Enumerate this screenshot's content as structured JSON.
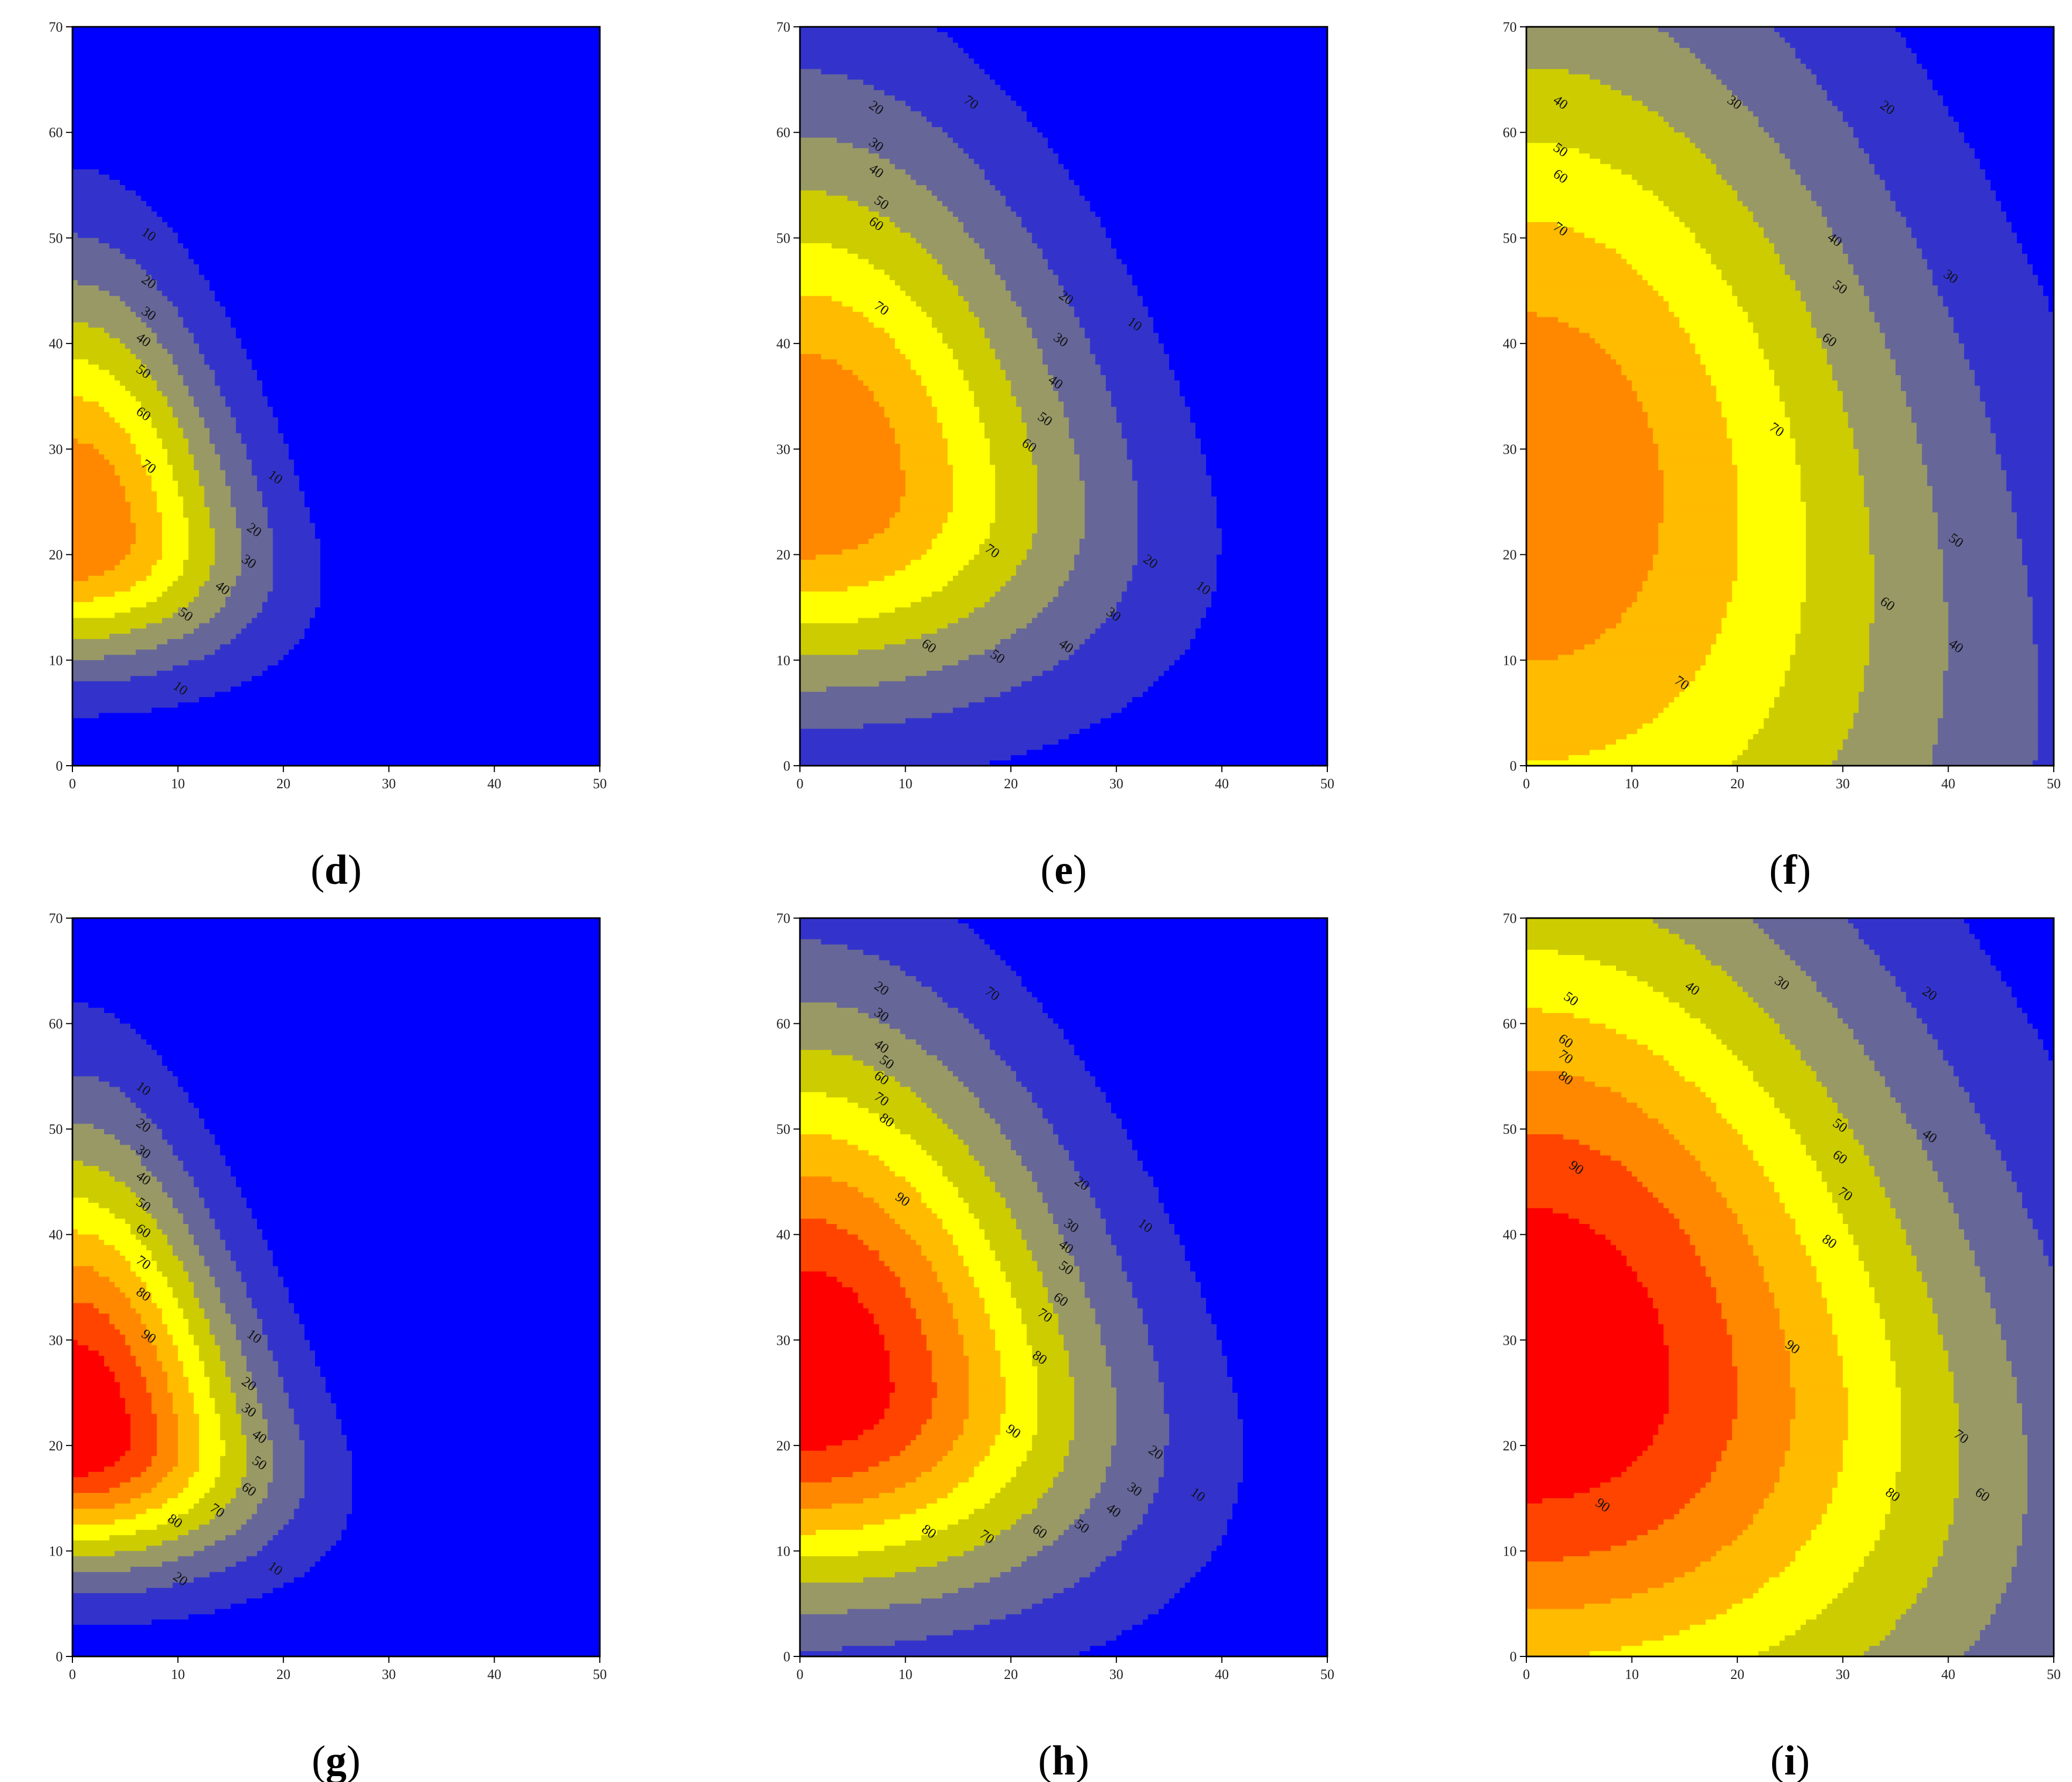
{
  "colors": {
    "level_0": "#0000ff",
    "level_10": "#3333cc",
    "level_20": "#666699",
    "level_30": "#999966",
    "level_40": "#cccc00",
    "level_50": "#ffff00",
    "level_60": "#ffbb00",
    "level_70": "#ff8800",
    "level_80": "#ff4400",
    "level_90": "#ff0000",
    "contour_line": "#000000"
  },
  "chart_data": [
    {
      "panel": "d",
      "caption": "d",
      "type": "heatmap",
      "xlim": [
        0,
        50
      ],
      "ylim": [
        0,
        70
      ],
      "xticks": [
        0,
        10,
        20,
        30,
        40,
        50
      ],
      "yticks": [
        0,
        10,
        20,
        30,
        40,
        50,
        60,
        70
      ],
      "levels": [
        10,
        20,
        30,
        40,
        50,
        60,
        70
      ],
      "contour_labels": [
        {
          "text": "10",
          "x": 7,
          "y": 50
        },
        {
          "text": "20",
          "x": 7,
          "y": 45.5
        },
        {
          "text": "30",
          "x": 7,
          "y": 42.5
        },
        {
          "text": "40",
          "x": 6.5,
          "y": 40
        },
        {
          "text": "50",
          "x": 6.5,
          "y": 37
        },
        {
          "text": "60",
          "x": 6.5,
          "y": 33
        },
        {
          "text": "70",
          "x": 7,
          "y": 28
        },
        {
          "text": "10",
          "x": 19,
          "y": 27
        },
        {
          "text": "20",
          "x": 17,
          "y": 22
        },
        {
          "text": "30",
          "x": 16.5,
          "y": 19
        },
        {
          "text": "40",
          "x": 14,
          "y": 16.5
        },
        {
          "text": "50",
          "x": 10.5,
          "y": 14
        },
        {
          "text": "10",
          "x": 10,
          "y": 7
        }
      ]
    },
    {
      "panel": "e",
      "caption": "e",
      "type": "heatmap",
      "xlim": [
        0,
        50
      ],
      "ylim": [
        0,
        70
      ],
      "xticks": [
        0,
        10,
        20,
        30,
        40,
        50
      ],
      "yticks": [
        0,
        10,
        20,
        30,
        40,
        50,
        60,
        70
      ],
      "levels": [
        10,
        20,
        30,
        40,
        50,
        60,
        70
      ],
      "contour_labels": [
        {
          "text": "20",
          "x": 7,
          "y": 62
        },
        {
          "text": "30",
          "x": 7,
          "y": 58.5
        },
        {
          "text": "40",
          "x": 7,
          "y": 56
        },
        {
          "text": "50",
          "x": 7.5,
          "y": 53
        },
        {
          "text": "60",
          "x": 7,
          "y": 51
        },
        {
          "text": "70",
          "x": 16,
          "y": 62.5
        },
        {
          "text": "70",
          "x": 7.5,
          "y": 43
        },
        {
          "text": "20",
          "x": 25,
          "y": 44
        },
        {
          "text": "10",
          "x": 31.5,
          "y": 41.5
        },
        {
          "text": "30",
          "x": 24.5,
          "y": 40
        },
        {
          "text": "40",
          "x": 24,
          "y": 36
        },
        {
          "text": "50",
          "x": 23,
          "y": 32.5
        },
        {
          "text": "60",
          "x": 21.5,
          "y": 30
        },
        {
          "text": "70",
          "x": 18,
          "y": 20
        },
        {
          "text": "20",
          "x": 33,
          "y": 19
        },
        {
          "text": "10",
          "x": 38,
          "y": 16.5
        },
        {
          "text": "30",
          "x": 29.5,
          "y": 14
        },
        {
          "text": "60",
          "x": 12,
          "y": 11
        },
        {
          "text": "50",
          "x": 18.5,
          "y": 10
        },
        {
          "text": "40",
          "x": 25,
          "y": 11
        }
      ]
    },
    {
      "panel": "f",
      "caption": "f",
      "type": "heatmap",
      "xlim": [
        0,
        50
      ],
      "ylim": [
        0,
        70
      ],
      "xticks": [
        0,
        10,
        20,
        30,
        40,
        50
      ],
      "yticks": [
        0,
        10,
        20,
        30,
        40,
        50,
        60,
        70
      ],
      "levels": [
        20,
        30,
        40,
        50,
        60,
        70
      ],
      "contour_labels": [
        {
          "text": "40",
          "x": 3,
          "y": 62.5
        },
        {
          "text": "30",
          "x": 19.5,
          "y": 62.5
        },
        {
          "text": "20",
          "x": 34,
          "y": 62
        },
        {
          "text": "50",
          "x": 3,
          "y": 58
        },
        {
          "text": "60",
          "x": 3,
          "y": 55.5
        },
        {
          "text": "70",
          "x": 3,
          "y": 50.5
        },
        {
          "text": "40",
          "x": 29,
          "y": 49.5
        },
        {
          "text": "30",
          "x": 40,
          "y": 46
        },
        {
          "text": "50",
          "x": 29.5,
          "y": 45
        },
        {
          "text": "60",
          "x": 28.5,
          "y": 40
        },
        {
          "text": "70",
          "x": 23.5,
          "y": 31.5
        },
        {
          "text": "50",
          "x": 40.5,
          "y": 21
        },
        {
          "text": "60",
          "x": 34,
          "y": 15
        },
        {
          "text": "40",
          "x": 40.5,
          "y": 11
        },
        {
          "text": "70",
          "x": 14.5,
          "y": 7.5
        }
      ]
    },
    {
      "panel": "g",
      "caption": "g",
      "type": "heatmap",
      "xlim": [
        0,
        50
      ],
      "ylim": [
        0,
        70
      ],
      "xticks": [
        0,
        10,
        20,
        30,
        40,
        50
      ],
      "yticks": [
        0,
        10,
        20,
        30,
        40,
        50,
        60,
        70
      ],
      "levels": [
        10,
        20,
        30,
        40,
        50,
        60,
        70,
        80,
        90
      ],
      "contour_labels": [
        {
          "text": "10",
          "x": 6.5,
          "y": 53.5
        },
        {
          "text": "20",
          "x": 6.5,
          "y": 50
        },
        {
          "text": "30",
          "x": 6.5,
          "y": 47.5
        },
        {
          "text": "40",
          "x": 6.5,
          "y": 45
        },
        {
          "text": "50",
          "x": 6.5,
          "y": 42.5
        },
        {
          "text": "60",
          "x": 6.5,
          "y": 40
        },
        {
          "text": "70",
          "x": 6.5,
          "y": 37
        },
        {
          "text": "80",
          "x": 6.5,
          "y": 34
        },
        {
          "text": "90",
          "x": 7,
          "y": 30
        },
        {
          "text": "10",
          "x": 17,
          "y": 30
        },
        {
          "text": "20",
          "x": 16.5,
          "y": 25.5
        },
        {
          "text": "30",
          "x": 16.5,
          "y": 23
        },
        {
          "text": "40",
          "x": 17.5,
          "y": 20.5
        },
        {
          "text": "50",
          "x": 17.5,
          "y": 18
        },
        {
          "text": "60",
          "x": 16.5,
          "y": 15.5
        },
        {
          "text": "70",
          "x": 13.5,
          "y": 13.5
        },
        {
          "text": "80",
          "x": 9.5,
          "y": 12.5
        },
        {
          "text": "20",
          "x": 10,
          "y": 7
        },
        {
          "text": "10",
          "x": 19,
          "y": 8
        }
      ]
    },
    {
      "panel": "h",
      "caption": "h",
      "type": "heatmap",
      "xlim": [
        0,
        50
      ],
      "ylim": [
        0,
        70
      ],
      "xticks": [
        0,
        10,
        20,
        30,
        40,
        50
      ],
      "yticks": [
        0,
        10,
        20,
        30,
        40,
        50,
        60,
        70
      ],
      "levels": [
        10,
        20,
        30,
        40,
        50,
        60,
        70,
        80,
        90
      ],
      "contour_labels": [
        {
          "text": "20",
          "x": 7.5,
          "y": 63
        },
        {
          "text": "70",
          "x": 18,
          "y": 62.5
        },
        {
          "text": "30",
          "x": 7.5,
          "y": 60.5
        },
        {
          "text": "40",
          "x": 7.5,
          "y": 57.5
        },
        {
          "text": "50",
          "x": 8,
          "y": 56
        },
        {
          "text": "60",
          "x": 7.5,
          "y": 54.5
        },
        {
          "text": "70",
          "x": 7.5,
          "y": 52.5
        },
        {
          "text": "80",
          "x": 8,
          "y": 50.5
        },
        {
          "text": "90",
          "x": 9.5,
          "y": 43
        },
        {
          "text": "20",
          "x": 26.5,
          "y": 44.5
        },
        {
          "text": "30",
          "x": 25.5,
          "y": 40.5
        },
        {
          "text": "10",
          "x": 32.5,
          "y": 40.5
        },
        {
          "text": "40",
          "x": 25,
          "y": 38.5
        },
        {
          "text": "50",
          "x": 25,
          "y": 36.5
        },
        {
          "text": "60",
          "x": 24.5,
          "y": 33.5
        },
        {
          "text": "70",
          "x": 23,
          "y": 32
        },
        {
          "text": "80",
          "x": 22.5,
          "y": 28
        },
        {
          "text": "90",
          "x": 20,
          "y": 21
        },
        {
          "text": "20",
          "x": 33.5,
          "y": 19
        },
        {
          "text": "10",
          "x": 37.5,
          "y": 15
        },
        {
          "text": "30",
          "x": 31.5,
          "y": 15.5
        },
        {
          "text": "40",
          "x": 29.5,
          "y": 13.5
        },
        {
          "text": "50",
          "x": 26.5,
          "y": 12
        },
        {
          "text": "60",
          "x": 22.5,
          "y": 11.5
        },
        {
          "text": "70",
          "x": 17.5,
          "y": 11
        },
        {
          "text": "80",
          "x": 12,
          "y": 11.5
        }
      ]
    },
    {
      "panel": "i",
      "caption": "i",
      "type": "heatmap",
      "xlim": [
        0,
        50
      ],
      "ylim": [
        0,
        70
      ],
      "xticks": [
        0,
        10,
        20,
        30,
        40,
        50
      ],
      "yticks": [
        0,
        10,
        20,
        30,
        40,
        50,
        60,
        70
      ],
      "levels": [
        20,
        30,
        40,
        50,
        60,
        70,
        80,
        90
      ],
      "contour_labels": [
        {
          "text": "50",
          "x": 4,
          "y": 62
        },
        {
          "text": "40",
          "x": 15.5,
          "y": 63
        },
        {
          "text": "30",
          "x": 24,
          "y": 63.5
        },
        {
          "text": "20",
          "x": 38,
          "y": 62.5
        },
        {
          "text": "60",
          "x": 3.5,
          "y": 58
        },
        {
          "text": "70",
          "x": 3.5,
          "y": 56.5
        },
        {
          "text": "80",
          "x": 3.5,
          "y": 54.5
        },
        {
          "text": "90",
          "x": 4.5,
          "y": 46
        },
        {
          "text": "50",
          "x": 29.5,
          "y": 50
        },
        {
          "text": "40",
          "x": 38,
          "y": 49
        },
        {
          "text": "60",
          "x": 29.5,
          "y": 47
        },
        {
          "text": "70",
          "x": 30,
          "y": 43.5
        },
        {
          "text": "80",
          "x": 28.5,
          "y": 39
        },
        {
          "text": "90",
          "x": 25,
          "y": 29
        },
        {
          "text": "70",
          "x": 41,
          "y": 20.5
        },
        {
          "text": "80",
          "x": 34.5,
          "y": 15
        },
        {
          "text": "60",
          "x": 43,
          "y": 15
        },
        {
          "text": "90",
          "x": 7,
          "y": 14
        }
      ]
    }
  ]
}
